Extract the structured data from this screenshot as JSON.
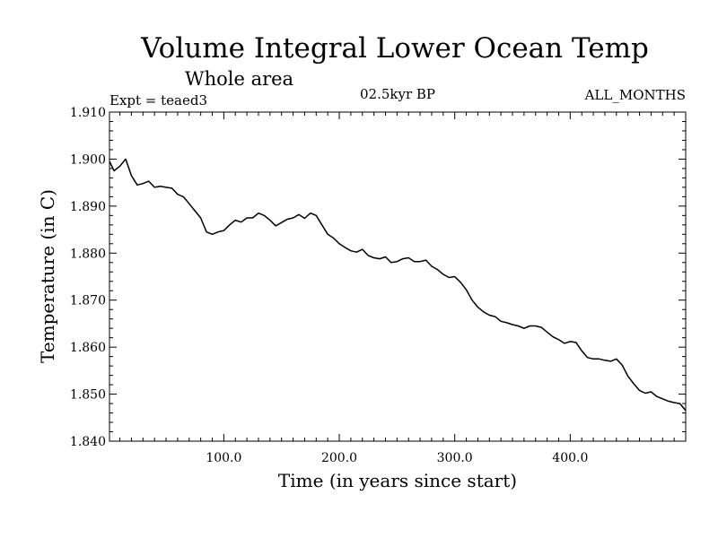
{
  "chart_data": {
    "type": "line",
    "title": "Volume Integral Lower Ocean Temp",
    "subtitle": "Whole area",
    "annotations": {
      "left": "Expt = teaed3",
      "center": "02.5kyr BP",
      "right": "ALL_MONTHS"
    },
    "xlabel": "Time (in years since start)",
    "ylabel": "Temperature (in C)",
    "xlim": [
      1,
      500
    ],
    "ylim": [
      1.84,
      1.91
    ],
    "x_ticks": [
      100,
      200,
      300,
      400
    ],
    "x_tick_labels": [
      "100.0",
      "200.0",
      "300.0",
      "400.0"
    ],
    "y_ticks": [
      1.84,
      1.85,
      1.86,
      1.87,
      1.88,
      1.89,
      1.9,
      1.91
    ],
    "y_tick_labels": [
      "1.840",
      "1.850",
      "1.860",
      "1.870",
      "1.880",
      "1.890",
      "1.900",
      "1.910"
    ],
    "grid": false,
    "series": [
      {
        "name": "Volume Integral Lower Ocean Temp",
        "color": "#000000",
        "x": [
          1,
          5,
          10,
          15,
          20,
          25,
          30,
          35,
          40,
          45,
          50,
          55,
          60,
          65,
          70,
          75,
          80,
          85,
          90,
          95,
          100,
          105,
          110,
          115,
          120,
          125,
          130,
          135,
          140,
          145,
          150,
          155,
          160,
          165,
          170,
          175,
          180,
          185,
          190,
          195,
          200,
          205,
          210,
          215,
          220,
          225,
          230,
          235,
          240,
          245,
          250,
          255,
          260,
          265,
          270,
          275,
          280,
          285,
          290,
          295,
          300,
          305,
          310,
          315,
          320,
          325,
          330,
          335,
          340,
          345,
          350,
          355,
          360,
          365,
          370,
          375,
          380,
          385,
          390,
          395,
          400,
          405,
          410,
          415,
          420,
          425,
          430,
          435,
          440,
          445,
          450,
          455,
          460,
          465,
          470,
          475,
          480,
          485,
          490,
          495,
          500
        ],
        "y": [
          1.8995,
          1.8975,
          1.8985,
          1.9,
          1.8965,
          1.8945,
          1.8948,
          1.8953,
          1.894,
          1.8942,
          1.894,
          1.8938,
          1.8925,
          1.892,
          1.8905,
          1.889,
          1.8875,
          1.8845,
          1.884,
          1.8845,
          1.8848,
          1.886,
          1.887,
          1.8866,
          1.8875,
          1.8875,
          1.8885,
          1.888,
          1.887,
          1.8858,
          1.8865,
          1.8872,
          1.8875,
          1.8882,
          1.8874,
          1.8885,
          1.888,
          1.886,
          1.884,
          1.8832,
          1.882,
          1.8812,
          1.8805,
          1.8802,
          1.8808,
          1.8795,
          1.879,
          1.8788,
          1.8792,
          1.878,
          1.8782,
          1.8788,
          1.879,
          1.8782,
          1.8782,
          1.8785,
          1.8772,
          1.8765,
          1.8755,
          1.8748,
          1.875,
          1.8738,
          1.8722,
          1.87,
          1.8685,
          1.8675,
          1.8668,
          1.8665,
          1.8655,
          1.8652,
          1.8648,
          1.8645,
          1.864,
          1.8645,
          1.8645,
          1.8642,
          1.8632,
          1.8622,
          1.8616,
          1.8608,
          1.8612,
          1.861,
          1.8592,
          1.8578,
          1.8575,
          1.8575,
          1.8572,
          1.857,
          1.8575,
          1.8562,
          1.8538,
          1.8522,
          1.8508,
          1.8502,
          1.8505,
          1.8495,
          1.849,
          1.8485,
          1.8482,
          1.848,
          1.8465
        ]
      }
    ]
  }
}
